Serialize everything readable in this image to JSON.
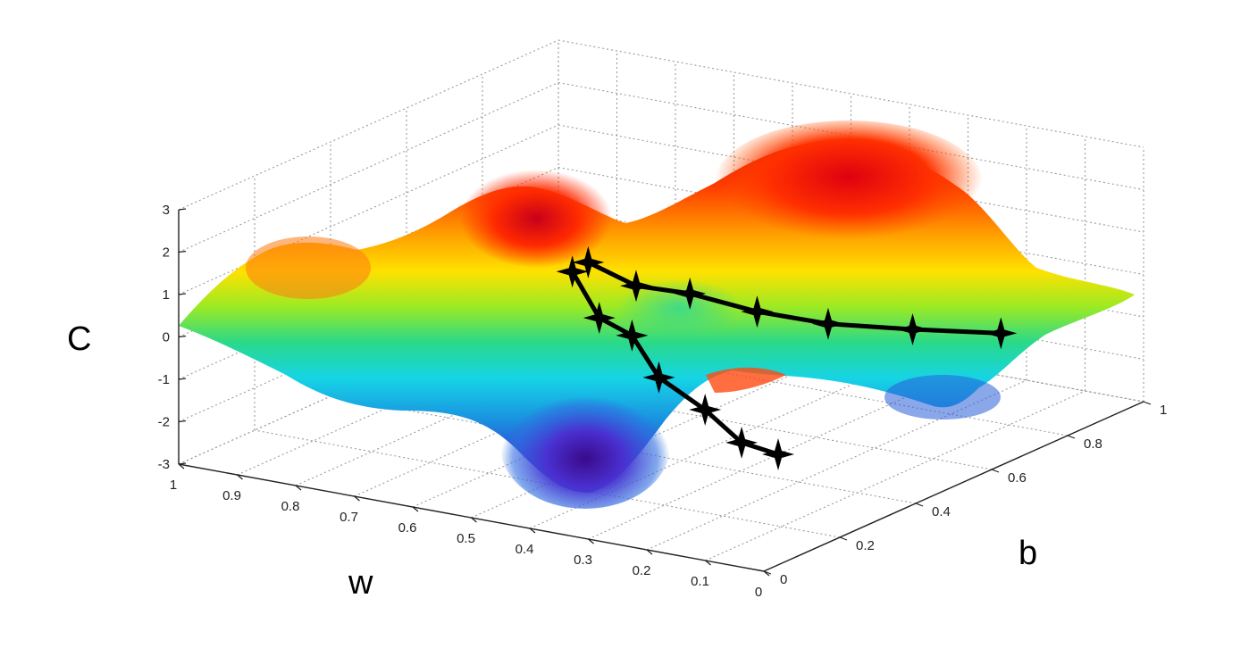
{
  "chart_data": {
    "type": "surface",
    "title": "",
    "xlabel": "w",
    "ylabel": "b",
    "zlabel": "C",
    "x_ticks": [
      "1",
      "0.9",
      "0.8",
      "0.7",
      "0.6",
      "0.5",
      "0.4",
      "0.3",
      "0.2",
      "0.1",
      "0"
    ],
    "y_ticks": [
      "0",
      "0.2",
      "0.4",
      "0.6",
      "0.8",
      "1"
    ],
    "z_ticks": [
      "3",
      "2",
      "1",
      "0",
      "-1",
      "-2",
      "-3"
    ],
    "xlim": [
      0,
      1
    ],
    "ylim": [
      0,
      1
    ],
    "zlim": [
      -3,
      3
    ],
    "grid": true,
    "colormap": "jet",
    "surface": {
      "description_features": [
        {
          "kind": "peak",
          "w": 0.45,
          "b": 0.2,
          "C": 3.0
        },
        {
          "kind": "peak",
          "w": 0.9,
          "b": 0.3,
          "C": 2.5
        },
        {
          "kind": "peak",
          "w": 0.2,
          "b": 0.6,
          "C": 3.0
        },
        {
          "kind": "valley",
          "w": 0.3,
          "b": 0.5,
          "C": -3.0
        },
        {
          "kind": "valley",
          "w": 0.1,
          "b": 0.9,
          "C": -2.0
        }
      ]
    },
    "series": [
      {
        "points": [
          {
            "w": 0.47,
            "b": 0.22,
            "C": 2.0
          },
          {
            "w": 0.45,
            "b": 0.26,
            "C": 0.8
          },
          {
            "w": 0.42,
            "b": 0.3,
            "C": 0.3
          },
          {
            "w": 0.4,
            "b": 0.34,
            "C": -0.8
          },
          {
            "w": 0.36,
            "b": 0.4,
            "C": -1.7
          },
          {
            "w": 0.33,
            "b": 0.45,
            "C": -2.6
          },
          {
            "w": 0.3,
            "b": 0.5,
            "C": -3.0
          }
        ]
      },
      {
        "points": [
          {
            "w": 0.43,
            "b": 0.2,
            "C": 2.4
          },
          {
            "w": 0.4,
            "b": 0.28,
            "C": 1.6
          },
          {
            "w": 0.36,
            "b": 0.36,
            "C": 1.2
          },
          {
            "w": 0.31,
            "b": 0.46,
            "C": 0.5
          },
          {
            "w": 0.26,
            "b": 0.57,
            "C": -0.1
          },
          {
            "w": 0.2,
            "b": 0.7,
            "C": -0.6
          },
          {
            "w": 0.14,
            "b": 0.84,
            "C": -1.1
          }
        ]
      }
    ]
  }
}
